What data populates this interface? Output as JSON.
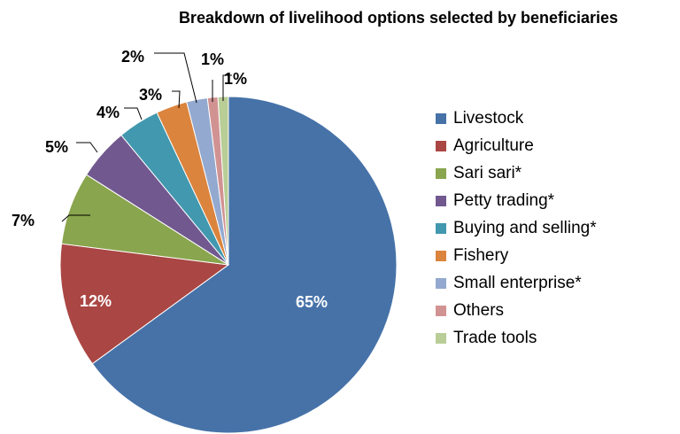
{
  "chart_data": {
    "type": "pie",
    "title": "Breakdown of livelihood options selected by beneficiaries",
    "legend_position": "right",
    "categories": [
      "Livestock",
      "Agriculture",
      "Sari sari*",
      "Petty trading*",
      "Buying and selling*",
      "Fishery",
      "Small enterprise*",
      "Others",
      "Trade tools"
    ],
    "values": [
      65,
      12,
      7,
      5,
      4,
      3,
      2,
      1,
      1
    ],
    "labels": [
      "65%",
      "12%",
      "7%",
      "5%",
      "4%",
      "3%",
      "2%",
      "1%",
      "1%"
    ],
    "colors": [
      "#4672A8",
      "#AA4643",
      "#89A54E",
      "#71588F",
      "#4198AF",
      "#DB843D",
      "#93A9CF",
      "#D19392",
      "#B9CD96"
    ]
  }
}
